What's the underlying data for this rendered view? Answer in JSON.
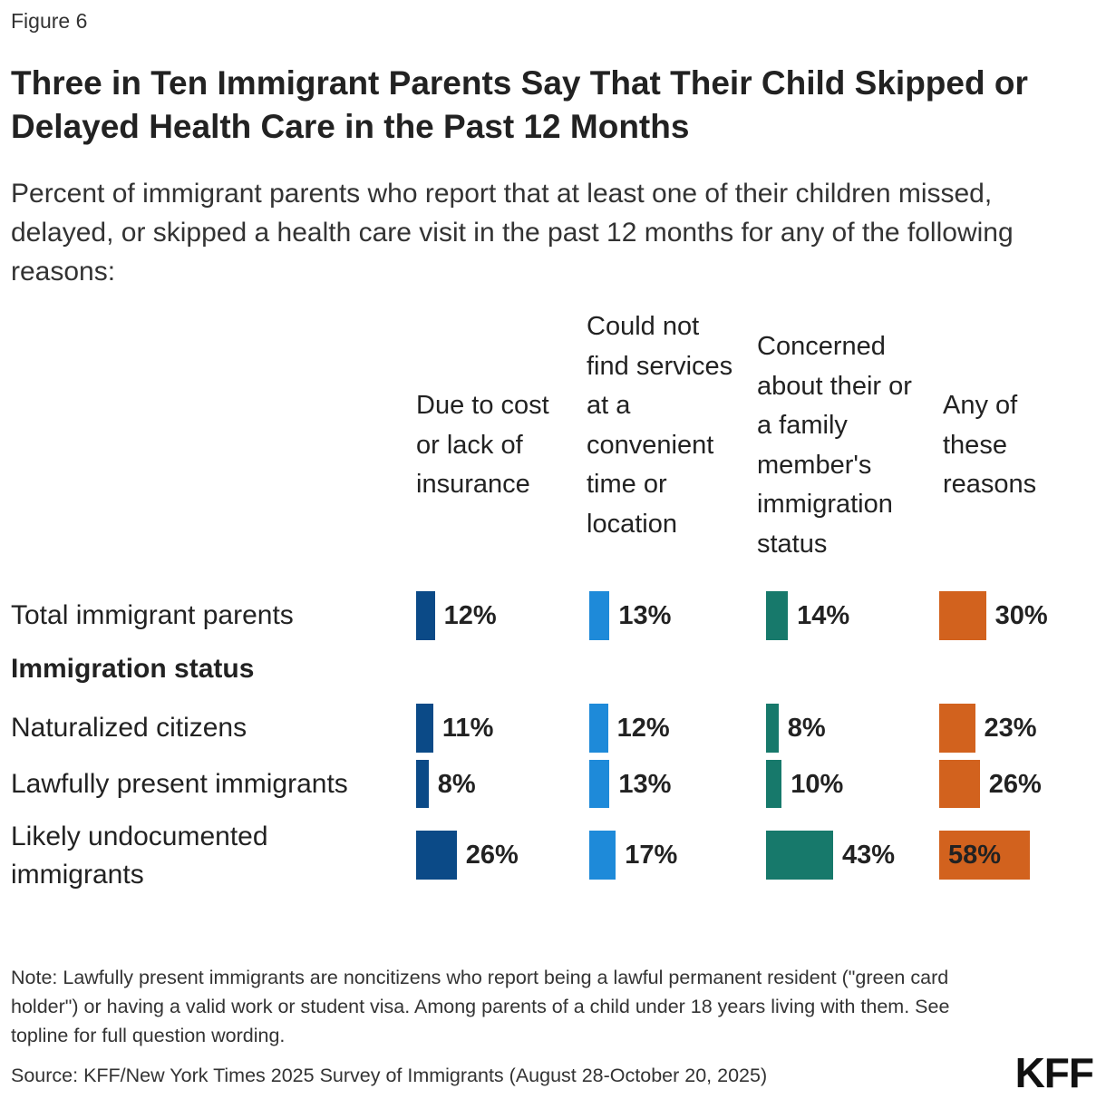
{
  "figure_label": "Figure 6",
  "logo_text": "KFF",
  "note": "Note: Lawfully present immigrants are noncitizens who report being a lawful permanent resident (\"green card holder\") or having a valid work or student visa. Among parents of a child under 18 years living with them. See topline for full question wording.",
  "source": "Source: KFF/New York Times 2025 Survey of Immigrants (August 28-October 20, 2025)",
  "chart_data": {
    "type": "bar",
    "title": "Three in Ten Immigrant Parents Say That Their Child Skipped or Delayed Health Care in the Past 12 Months",
    "subtitle": "Percent of immigrant parents who report that at least one of their children missed, delayed, or skipped a health care visit in the past 12 months for any of the following reasons:",
    "categories": [
      "Total immigrant parents",
      "Naturalized citizens",
      "Lawfully present immigrants",
      "Likely undocumented immigrants"
    ],
    "group_label": "Immigration status",
    "series": [
      {
        "name": "Due to cost or lack of insurance",
        "color": "#0b4a87",
        "values": [
          12,
          11,
          8,
          26
        ],
        "labels": [
          "12%",
          "11%",
          "8%",
          "26%"
        ]
      },
      {
        "name": "Could not find services at a convenient time or location",
        "color": "#1e8ad9",
        "values": [
          13,
          12,
          13,
          17
        ],
        "labels": [
          "13%",
          "12%",
          "13%",
          "17%"
        ]
      },
      {
        "name": "Concerned about their or a family member's immigration status",
        "color": "#17796b",
        "values": [
          14,
          8,
          10,
          43
        ],
        "labels": [
          "14%",
          "8%",
          "10%",
          "43%"
        ]
      },
      {
        "name": "Any of these reasons",
        "color": "#d2621e",
        "values": [
          30,
          23,
          26,
          58
        ],
        "labels": [
          "30%",
          "23%",
          "26%",
          "58%"
        ]
      }
    ]
  }
}
